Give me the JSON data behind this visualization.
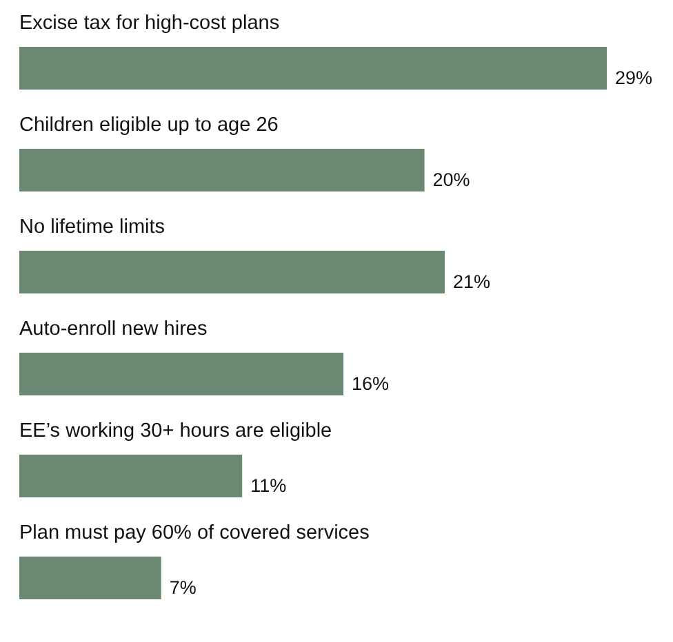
{
  "chart_data": {
    "type": "bar",
    "orientation": "horizontal",
    "categories": [
      "Excise tax for high-cost plans",
      "Children eligible up to age 26",
      "No lifetime limits",
      "Auto-enroll new hires",
      "EE’s working 30+ hours are eligible",
      "Plan must pay 60% of covered services"
    ],
    "values": [
      29,
      20,
      21,
      16,
      11,
      7
    ],
    "value_labels": [
      "29%",
      "20%",
      "21%",
      "16%",
      "11%",
      "7%"
    ],
    "color": "#6b8872"
  }
}
